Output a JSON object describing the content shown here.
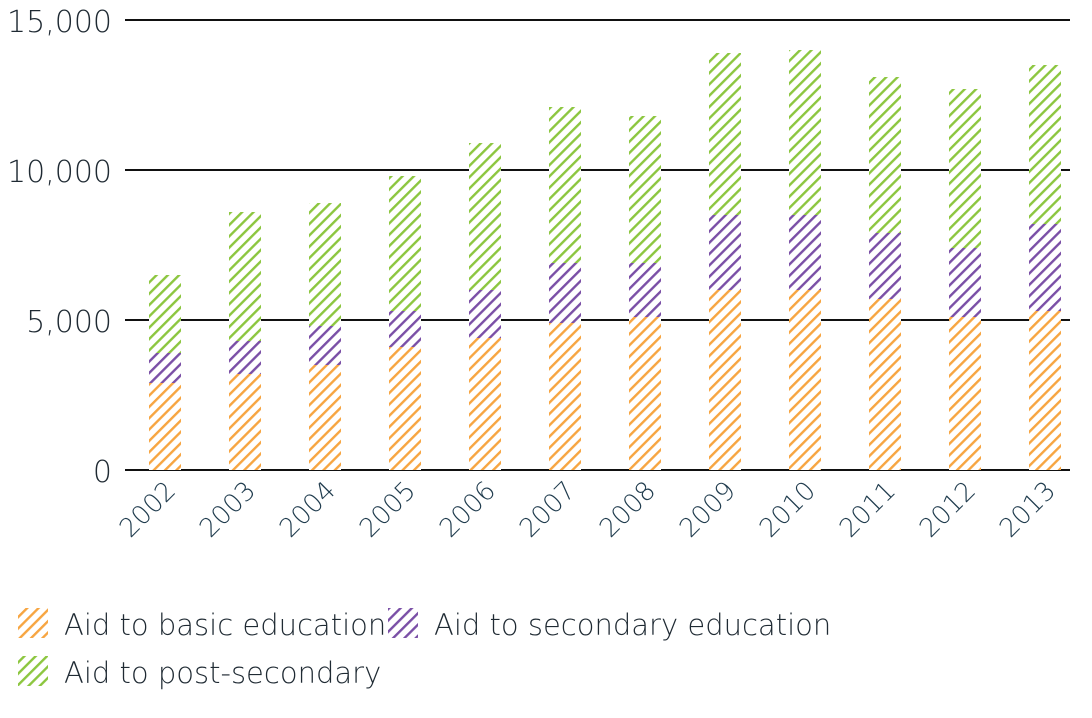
{
  "chart_data": {
    "type": "bar",
    "stacked": true,
    "categories": [
      "2002",
      "2003",
      "2004",
      "2005",
      "2006",
      "2007",
      "2008",
      "2009",
      "2010",
      "2011",
      "2012",
      "2013"
    ],
    "series": [
      {
        "name": "Aid to basic education",
        "color": "#f7a541",
        "values": [
          2900,
          3200,
          3500,
          4100,
          4400,
          4900,
          5100,
          6000,
          6000,
          5700,
          5100,
          5300
        ]
      },
      {
        "name": "Aid to secondary education",
        "color": "#7a4fa6",
        "values": [
          1000,
          1100,
          1300,
          1200,
          1600,
          2000,
          1800,
          2500,
          2500,
          2200,
          2300,
          2900
        ]
      },
      {
        "name": "Aid to post-secondary",
        "color": "#8cc63f",
        "values": [
          2600,
          4300,
          4100,
          4500,
          4900,
          5200,
          4900,
          5400,
          5500,
          5200,
          5300,
          5300
        ]
      }
    ],
    "ylim": [
      0,
      15000
    ],
    "yticks": [
      "0",
      "5,000",
      "10,000",
      "15,000"
    ],
    "ytick_values": [
      0,
      5000,
      10000,
      15000
    ],
    "grid": true,
    "legend_placement": "bottom-left",
    "fill": "diagonal-hatch",
    "tick_label_color": "#1f3b4d"
  }
}
